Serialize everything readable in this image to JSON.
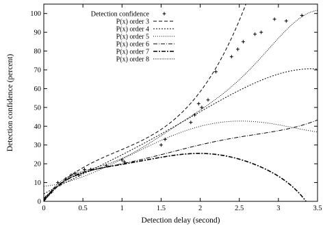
{
  "chart_data": {
    "type": "scatter",
    "xlabel": "Detection delay (second)",
    "ylabel": "Detection confidence (percent)",
    "xlim": [
      0,
      3.5
    ],
    "ylim": [
      0,
      105
    ],
    "x_ticks": [
      0,
      0.5,
      1,
      1.5,
      2,
      2.5,
      3,
      3.5
    ],
    "y_ticks": [
      0,
      10,
      20,
      30,
      40,
      50,
      60,
      70,
      80,
      90,
      100
    ],
    "grid": false,
    "legend_placement": "top-left",
    "points": {
      "name": "Detection confidence",
      "x": [
        0.02,
        0.05,
        0.1,
        0.14,
        0.18,
        0.21,
        0.28,
        0.35,
        0.4,
        0.45,
        0.52,
        0.6,
        0.8,
        1.0,
        1.03,
        1.5,
        1.55,
        1.88,
        1.93,
        1.98,
        2.02,
        2.1,
        2.2,
        2.4,
        2.48,
        2.55,
        2.7,
        2.78,
        2.95,
        3.1,
        3.3
      ],
      "y": [
        2,
        3,
        5,
        7,
        10,
        9,
        12,
        14,
        15,
        14,
        17,
        17,
        19,
        22,
        21,
        30,
        33,
        42,
        46,
        52,
        50,
        54,
        69,
        77,
        81,
        85,
        89,
        90,
        97,
        96,
        99
      ]
    },
    "series": [
      {
        "name": "P(x) order 3",
        "dash": "5,3",
        "width": 1.0,
        "coeffs": [
          0.8,
          47.2,
          -31.6,
          11.2
        ]
      },
      {
        "name": "P(x) order 4",
        "dash": "2,2",
        "width": 1.0,
        "coeffs": [
          4.0,
          22.43,
          -4.44,
          3.53,
          -0.727
        ]
      },
      {
        "name": "P(x) order 5",
        "dash": "1,2",
        "width": 1.0,
        "coeffs": [
          8.0,
          4.3,
          13.46,
          -2.33,
          -1.275,
          0.267
        ]
      },
      {
        "name": "P(x) order 6",
        "dash": "6,2,1,2",
        "width": 1.0,
        "coeffs": [
          1.0,
          51.09,
          -67.07,
          51.3,
          -19.66,
          3.598,
          -0.2469
        ]
      },
      {
        "name": "P(x) order 7",
        "dash": "6,2,2,2",
        "width": 1.6,
        "coeffs": [
          0.0,
          57.07,
          -73.6,
          46.09,
          -6.76,
          -5.016,
          2.139,
          -0.2436
        ]
      },
      {
        "name": "P(x) order 8",
        "dash": "1,1.5",
        "width": 1.0,
        "coeffs": [
          0.0,
          68.3,
          -107.26,
          68.64,
          19.54,
          -42.73,
          20.13,
          -4.06,
          0.3047
        ]
      }
    ],
    "legend_entries": [
      {
        "name": "Detection confidence",
        "marker": "+"
      },
      {
        "name": "P(x) order 3"
      },
      {
        "name": "P(x) order 4"
      },
      {
        "name": "P(x) order 5"
      },
      {
        "name": "P(x) order 6"
      },
      {
        "name": "P(x) order 7"
      },
      {
        "name": "P(x) order 8"
      }
    ]
  }
}
